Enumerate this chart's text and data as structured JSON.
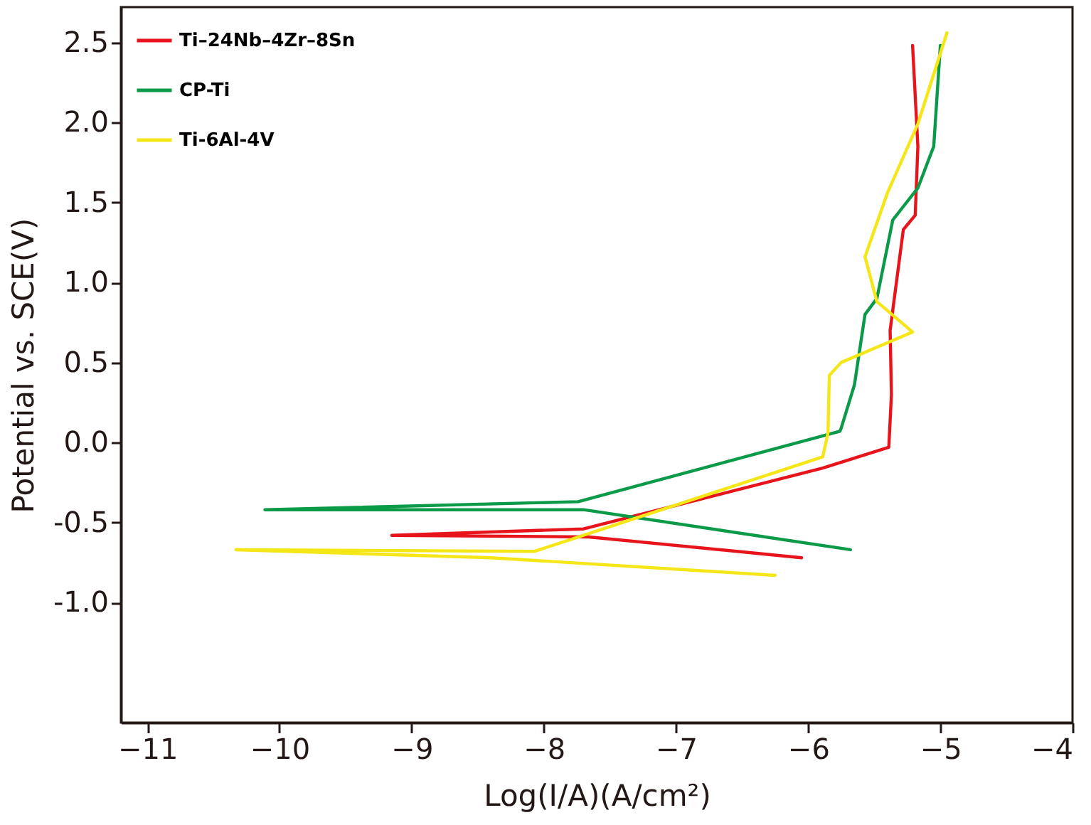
{
  "chart_data": {
    "type": "line",
    "xlabel": "Log(I/A)(A/cm²)",
    "ylabel": "Potential vs. SCE(V)",
    "xlim": [
      -11.2,
      -4
    ],
    "xticks": [
      -11,
      -10,
      -9,
      -8,
      -7,
      -6,
      -5,
      -4
    ],
    "ylim": [
      -1.75,
      2.72
    ],
    "yticks": [
      {
        "value": -1.0,
        "label": "-1.0"
      },
      {
        "value": -0.5,
        "label": "-0.5"
      },
      {
        "value": 0,
        "label": "0.0"
      },
      {
        "value": 0.5,
        "label": "0.5"
      },
      {
        "value": 1.0,
        "label": "1.0"
      },
      {
        "value": 1.5,
        "label": "1.5"
      },
      {
        "value": 2.0,
        "label": "2.0"
      },
      {
        "value": 2.5,
        "label": "2.5"
      }
    ],
    "grid": false,
    "legend": "top left",
    "marker": "none",
    "line_style": "solid",
    "series": [
      {
        "name": "Ti–24Nb–4Zr–8Sn",
        "color": "#e8141c",
        "x": [
          -6.05,
          -7.66,
          -9.15,
          -7.7,
          -5.89,
          -5.39,
          -5.37,
          -5.38,
          -5.28,
          -5.19,
          -5.17,
          -5.21
        ],
        "values": [
          -0.72,
          -0.59,
          -0.58,
          -0.54,
          -0.16,
          -0.03,
          0.3,
          0.7,
          1.33,
          1.42,
          1.85,
          2.48
        ]
      },
      {
        "name": "CP-Ti",
        "color": "#0a9a48",
        "x": [
          -5.68,
          -7.7,
          -10.11,
          -7.74,
          -5.76,
          -5.75,
          -5.65,
          -5.57,
          -5.48,
          -5.36,
          -5.17,
          -5.05,
          -5.0
        ],
        "values": [
          -0.67,
          -0.42,
          -0.42,
          -0.37,
          0.07,
          0.09,
          0.36,
          0.8,
          0.9,
          1.39,
          1.59,
          1.85,
          2.48
        ]
      },
      {
        "name": "Ti-6Al-4V",
        "color": "#f5e617",
        "x": [
          -6.25,
          -8.4,
          -10.33,
          -8.07,
          -5.89,
          -5.85,
          -5.84,
          -5.75,
          -5.21,
          -5.48,
          -5.57,
          -5.4,
          -5.17,
          -4.95
        ],
        "values": [
          -0.83,
          -0.72,
          -0.67,
          -0.68,
          -0.09,
          0.06,
          0.42,
          0.5,
          0.69,
          0.88,
          1.16,
          1.56,
          1.99,
          2.56
        ]
      }
    ]
  }
}
